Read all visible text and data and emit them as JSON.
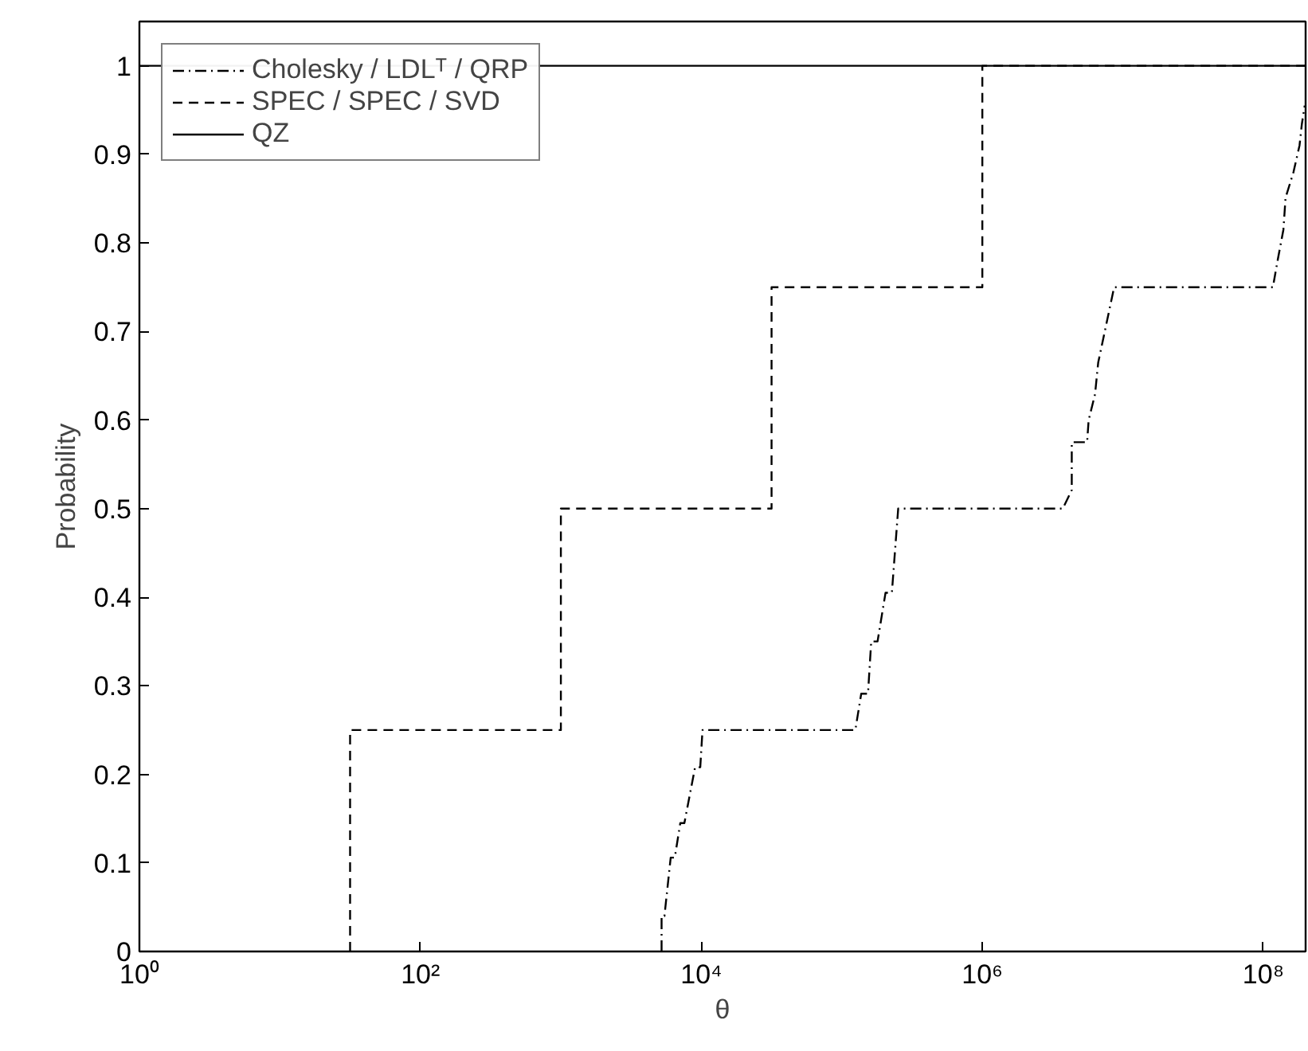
{
  "chart_data": {
    "type": "line",
    "xlabel": "θ",
    "ylabel": "Probability",
    "log": "x",
    "grid": false,
    "legend": "top left",
    "marker": "none",
    "xlim": [
      1,
      200000000
    ],
    "ylim": [
      0,
      1.05
    ],
    "xticks": [
      {
        "value": 1,
        "label": "10⁰"
      },
      {
        "value": 100,
        "label": "10²"
      },
      {
        "value": 10000,
        "label": "10⁴"
      },
      {
        "value": 1000000,
        "label": "10⁶"
      },
      {
        "value": 100000000,
        "label": "10⁸"
      }
    ],
    "yticks": [
      0,
      0.1,
      0.2,
      0.3,
      0.4,
      0.5,
      0.6,
      0.7,
      0.8,
      0.9,
      1
    ],
    "series": [
      {
        "name": "Cholesky / LDLᵀ / QRP",
        "color": "#000000",
        "line_style": "dashdot",
        "x": [
          5210,
          5210,
          5460,
          6050,
          6470,
          7080,
          7570,
          9020,
          9820,
          10190,
          124700,
          137400,
          153500,
          161800,
          179500,
          204600,
          227000,
          251800,
          3740000,
          4330000,
          4330000,
          5570000,
          5710000,
          6340000,
          6680000,
          7600000,
          8670000,
          117000000,
          126000000,
          139000000,
          144000000,
          164000000,
          181000000,
          188000000,
          197000000
        ],
        "values": [
          0,
          0.04,
          0.04,
          0.106,
          0.106,
          0.145,
          0.145,
          0.208,
          0.208,
          0.25,
          0.25,
          0.291,
          0.291,
          0.35,
          0.35,
          0.405,
          0.405,
          0.5,
          0.5,
          0.521,
          0.575,
          0.575,
          0.6,
          0.629,
          0.665,
          0.707,
          0.75,
          0.75,
          0.779,
          0.815,
          0.851,
          0.88,
          0.91,
          0.934,
          0.955
        ]
      },
      {
        "name": "SPEC / SPEC / SVD",
        "color": "#000000",
        "line_style": "dashed",
        "x": [
          31.6,
          31.6,
          1000,
          1000,
          31600,
          31600,
          1000000,
          1000000,
          200000000
        ],
        "values": [
          0,
          0.25,
          0.25,
          0.5,
          0.5,
          0.75,
          0.75,
          1,
          1
        ]
      },
      {
        "name": "QZ",
        "color": "#000000",
        "line_style": "solid",
        "x": [
          1,
          200000000
        ],
        "values": [
          1,
          1
        ]
      }
    ]
  }
}
